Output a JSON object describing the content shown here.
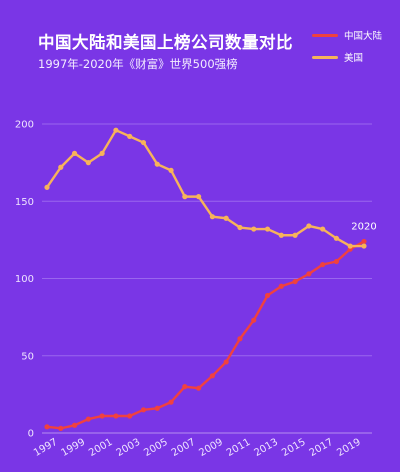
{
  "chart_data": {
    "type": "line",
    "title": "中国大陆和美国上榜公司数量对比",
    "subtitle": "1997年-2020年《财富》世界500强榜",
    "x": [
      1997,
      1998,
      1999,
      2000,
      2001,
      2002,
      2003,
      2004,
      2005,
      2006,
      2007,
      2008,
      2009,
      2010,
      2011,
      2012,
      2013,
      2014,
      2015,
      2016,
      2017,
      2018,
      2019,
      2020
    ],
    "x_tick_labels": [
      "1997",
      "1999",
      "2001",
      "2003",
      "2005",
      "2007",
      "2009",
      "2011",
      "2013",
      "2015",
      "2017",
      "2019"
    ],
    "ylim": [
      0,
      200
    ],
    "y_ticks": [
      0,
      50,
      100,
      150,
      200
    ],
    "grid": true,
    "legend_position": "top-right",
    "annotation": "2020",
    "series": [
      {
        "name": "中国大陆",
        "color": "#f0413f",
        "values": [
          4,
          3,
          5,
          9,
          11,
          11,
          11,
          15,
          16,
          20,
          30,
          29,
          37,
          46,
          61,
          73,
          89,
          95,
          98,
          103,
          109,
          111,
          119,
          124
        ]
      },
      {
        "name": "美国",
        "color": "#f7b35a",
        "values": [
          159,
          172,
          181,
          175,
          181,
          196,
          192,
          188,
          174,
          170,
          153,
          153,
          140,
          139,
          133,
          132,
          132,
          128,
          128,
          134,
          132,
          126,
          121,
          121
        ]
      }
    ]
  }
}
